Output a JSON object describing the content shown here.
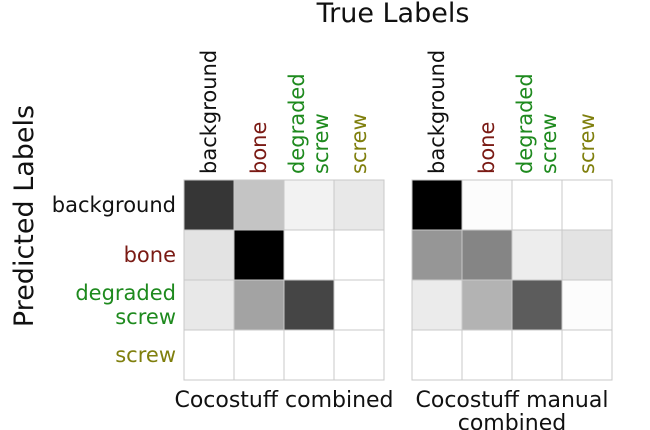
{
  "chart_data": {
    "type": "heatmap",
    "title": "True Labels",
    "ylabel": "Predicted Labels",
    "true_labels": [
      {
        "lines": [
          "background"
        ],
        "color": "#111111"
      },
      {
        "lines": [
          "bone"
        ],
        "color": "#7a1a14"
      },
      {
        "lines": [
          "degraded",
          "screw"
        ],
        "color": "#1e8a1e"
      },
      {
        "lines": [
          "screw"
        ],
        "color": "#7f7f0d"
      }
    ],
    "predicted_labels": [
      {
        "lines": [
          "background"
        ],
        "color": "#111111"
      },
      {
        "lines": [
          "bone"
        ],
        "color": "#7a1a14"
      },
      {
        "lines": [
          "degraded",
          "screw"
        ],
        "color": "#1e8a1e"
      },
      {
        "lines": [
          "screw"
        ],
        "color": "#7f7f0d"
      }
    ],
    "matrices": [
      {
        "caption_lines": [
          "Cocostuff  combined"
        ],
        "values": [
          [
            0.79,
            0.23,
            0.05,
            0.09
          ],
          [
            0.11,
            1.0,
            0.0,
            0.0
          ],
          [
            0.09,
            0.36,
            0.73,
            0.0
          ],
          [
            0.0,
            0.0,
            0.0,
            0.0
          ]
        ]
      },
      {
        "caption_lines": [
          "Cocostuff manual",
          "combined"
        ],
        "values": [
          [
            1.0,
            0.01,
            0.0,
            0.0
          ],
          [
            0.41,
            0.48,
            0.07,
            0.11
          ],
          [
            0.08,
            0.3,
            0.64,
            0.01
          ],
          [
            0.0,
            0.0,
            0.0,
            0.0
          ]
        ]
      }
    ],
    "colormap": "gray_r",
    "value_range": [
      0,
      1
    ],
    "grid": true
  }
}
